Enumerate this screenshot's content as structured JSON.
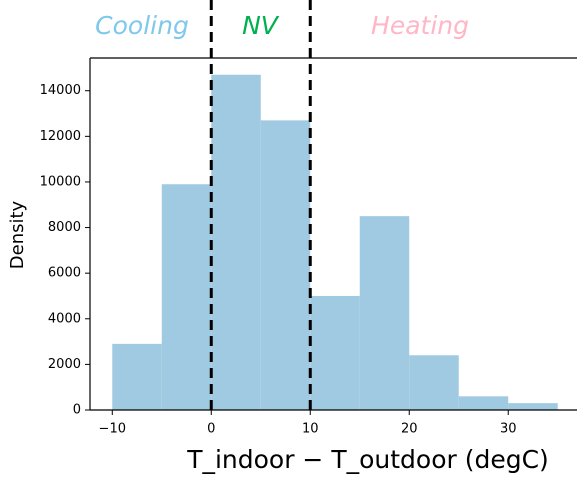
{
  "chart_data": {
    "type": "histogram",
    "bins": [
      -10,
      -5,
      0,
      5,
      10,
      15,
      20,
      25,
      30,
      35
    ],
    "values": [
      2900,
      9900,
      14700,
      12700,
      5000,
      8500,
      2400,
      600,
      300
    ],
    "color": "#9fcae1",
    "xlim": [
      -12.25,
      37.25
    ],
    "ylim": [
      0,
      15435
    ],
    "xticks": [
      {
        "value": -10,
        "label": "−10"
      },
      0,
      10,
      20,
      30
    ],
    "yticks": [
      0,
      2000,
      4000,
      6000,
      8000,
      10000,
      12000,
      14000
    ],
    "ylabel": "Density",
    "xlabel": "T_indoor − T_outdoor (degC)",
    "vlines": [
      0,
      10
    ],
    "vline_color": "#000000",
    "annotations": [
      {
        "text": "Cooling",
        "color": "#7ec8ec"
      },
      {
        "text": "NV",
        "color": "#00b050"
      },
      {
        "text": "Heating",
        "color": "#ffb6c6"
      }
    ]
  }
}
